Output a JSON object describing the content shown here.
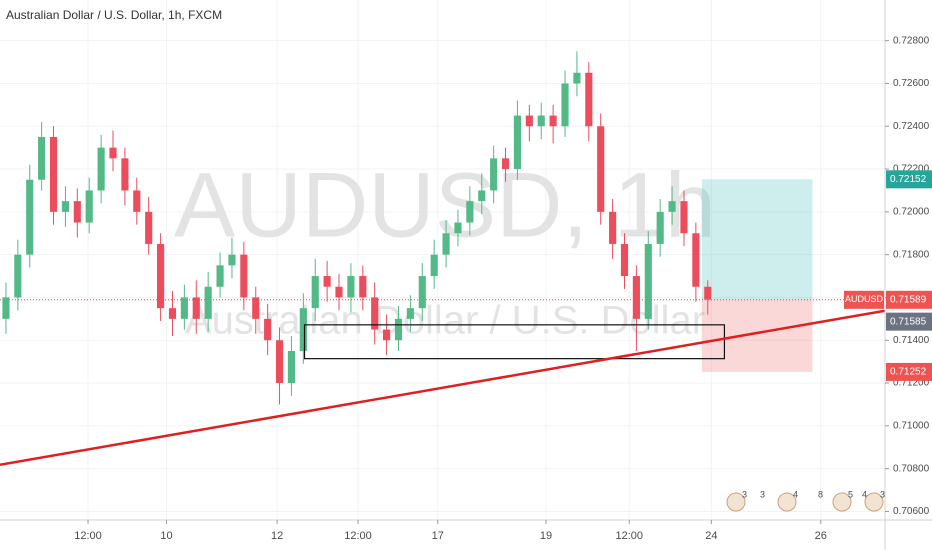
{
  "chart_data": {
    "type": "candlestick",
    "title": "Australian Dollar / U.S. Dollar, 1h, FXCM",
    "watermark": "AUDUSD, 1h",
    "watermark_subtitle": "Australian Dollar / U.S. Dollar",
    "up_color": "#53b987",
    "down_color": "#eb4d5c",
    "xlim": [
      -0.5,
      73.9
    ],
    "xticks": [
      {
        "value": 6.9,
        "label": "12:00"
      },
      {
        "value": 13.5,
        "label": "10"
      },
      {
        "value": 22.8,
        "label": "12"
      },
      {
        "value": 29.6,
        "label": "12:00"
      },
      {
        "value": 36.3,
        "label": "17"
      },
      {
        "value": 45.4,
        "label": "19"
      },
      {
        "value": 52.4,
        "label": "12:00"
      },
      {
        "value": 59.3,
        "label": "24"
      },
      {
        "value": 68.5,
        "label": "26"
      }
    ],
    "ylim": [
      0.7056,
      0.7299
    ],
    "yticks": [
      {
        "value": 0.706,
        "label": "0.70600"
      },
      {
        "value": 0.708,
        "label": "0.70800"
      },
      {
        "value": 0.71,
        "label": "0.71000"
      },
      {
        "value": 0.712,
        "label": "0.71200"
      },
      {
        "value": 0.714,
        "label": "0.71400"
      },
      {
        "value": 0.716,
        "label": "0.71600"
      },
      {
        "value": 0.718,
        "label": "0.71800"
      },
      {
        "value": 0.72,
        "label": "0.72000"
      },
      {
        "value": 0.722,
        "label": "0.72200"
      },
      {
        "value": 0.724,
        "label": "0.72400"
      },
      {
        "value": 0.726,
        "label": "0.72600"
      },
      {
        "value": 0.728,
        "label": "0.72800"
      }
    ],
    "open": [
      0.715,
      0.716,
      0.718,
      0.7215,
      0.7235,
      0.72,
      0.7205,
      0.7195,
      0.721,
      0.723,
      0.7225,
      0.721,
      0.72,
      0.7185,
      0.7155,
      0.715,
      0.716,
      0.715,
      0.7165,
      0.7175,
      0.718,
      0.716,
      0.715,
      0.714,
      0.712,
      0.7135,
      0.7155,
      0.717,
      0.7165,
      0.716,
      0.717,
      0.716,
      0.7145,
      0.714,
      0.715,
      0.7155,
      0.717,
      0.718,
      0.719,
      0.7195,
      0.7205,
      0.721,
      0.7225,
      0.722,
      0.7245,
      0.724,
      0.7245,
      0.724,
      0.726,
      0.7265,
      0.724,
      0.72,
      0.7185,
      0.717,
      0.715,
      0.7185,
      0.72,
      0.7205,
      0.719,
      0.7165
    ],
    "high": [
      0.7167,
      0.7187,
      0.7222,
      0.7242,
      0.724,
      0.7212,
      0.7211,
      0.7216,
      0.7236,
      0.7238,
      0.723,
      0.7216,
      0.7207,
      0.719,
      0.7163,
      0.7166,
      0.7168,
      0.7172,
      0.7181,
      0.7188,
      0.7186,
      0.7165,
      0.7157,
      0.7146,
      0.7142,
      0.7162,
      0.7178,
      0.7177,
      0.7171,
      0.7176,
      0.7175,
      0.7167,
      0.7152,
      0.7156,
      0.7161,
      0.7176,
      0.7187,
      0.7196,
      0.7201,
      0.7212,
      0.7218,
      0.7231,
      0.723,
      0.7252,
      0.725,
      0.7251,
      0.725,
      0.7266,
      0.7275,
      0.727,
      0.7246,
      0.7206,
      0.719,
      0.7175,
      0.7191,
      0.7206,
      0.7212,
      0.721,
      0.7195,
      0.7168
    ],
    "low": [
      0.7143,
      0.7154,
      0.7174,
      0.721,
      0.7194,
      0.7193,
      0.7188,
      0.719,
      0.7204,
      0.7219,
      0.7203,
      0.7194,
      0.718,
      0.7149,
      0.7142,
      0.7145,
      0.7143,
      0.7144,
      0.716,
      0.7169,
      0.7154,
      0.7143,
      0.7133,
      0.711,
      0.7114,
      0.7129,
      0.7149,
      0.7158,
      0.7154,
      0.7153,
      0.7154,
      0.7138,
      0.7133,
      0.7135,
      0.7144,
      0.7149,
      0.7164,
      0.7174,
      0.7184,
      0.7189,
      0.7199,
      0.7204,
      0.7214,
      0.7215,
      0.7233,
      0.7234,
      0.7232,
      0.7235,
      0.7254,
      0.7233,
      0.7194,
      0.7178,
      0.7164,
      0.7135,
      0.7145,
      0.7179,
      0.7194,
      0.7184,
      0.7158,
      0.7152
    ],
    "close": [
      0.716,
      0.718,
      0.7215,
      0.7235,
      0.72,
      0.7205,
      0.7195,
      0.721,
      0.723,
      0.7225,
      0.721,
      0.72,
      0.7185,
      0.7155,
      0.715,
      0.716,
      0.715,
      0.7165,
      0.7175,
      0.718,
      0.716,
      0.715,
      0.714,
      0.712,
      0.7135,
      0.7155,
      0.717,
      0.7165,
      0.716,
      0.717,
      0.716,
      0.7145,
      0.714,
      0.715,
      0.7155,
      0.717,
      0.718,
      0.719,
      0.7195,
      0.7205,
      0.721,
      0.7225,
      0.722,
      0.7245,
      0.724,
      0.7245,
      0.724,
      0.726,
      0.7265,
      0.724,
      0.72,
      0.7185,
      0.717,
      0.715,
      0.7185,
      0.72,
      0.7205,
      0.719,
      0.7165,
      0.7159
    ],
    "trend_line": {
      "x": [
        -0.5,
        73.9
      ],
      "y": [
        0.70818,
        0.71538
      ],
      "color": "#e02020"
    },
    "zone_box": {
      "x": [
        25.1,
        60.4
      ],
      "y": [
        0.71314,
        0.71472
      ]
    },
    "position": {
      "x": [
        58.5,
        67.8
      ],
      "entry": 0.71589,
      "target": 0.72152,
      "stop": 0.71252
    },
    "price_tags": {
      "symbol": "AUDUSD",
      "last": 0.71589,
      "bid": 0.71585,
      "target": 0.72152,
      "stop": 0.71252
    },
    "events": [
      "3",
      "3",
      "4",
      "8",
      "5",
      "4",
      "3"
    ]
  }
}
